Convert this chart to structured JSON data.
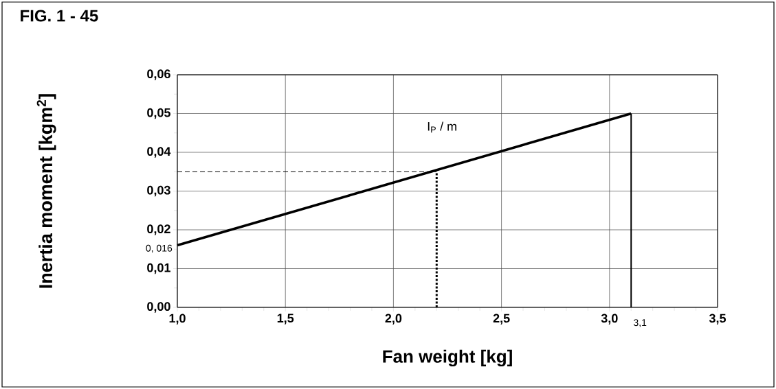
{
  "chart_data": {
    "type": "line",
    "title": "FIG. 1 - 45",
    "xlabel": "Fan weight [kg]",
    "ylabel": "Inertia moment [kgm$^{2}$]",
    "series": [
      {
        "color": "#000000",
        "line_style": "solid",
        "x": [
          1.0,
          3.1
        ],
        "values": [
          0.016,
          0.05
        ]
      },
      {
        "color": "#000000",
        "line_style": "solid",
        "x": [
          3.1,
          3.1
        ],
        "values": [
          0.0,
          0.05
        ]
      },
      {
        "color": "#000000",
        "line_style": "dashed",
        "x": [
          1.0,
          2.2
        ],
        "values": [
          0.035,
          0.035
        ]
      },
      {
        "color": "#000000",
        "line_style": "dotted",
        "x": [
          2.2,
          2.2
        ],
        "values": [
          0.0,
          0.035
        ]
      }
    ],
    "annotations": [
      "I$_{P}$ / m",
      {
        "text": "0, 016",
        "x": 1.0,
        "y": 0.016
      },
      {
        "text": "3,1",
        "x": 3.1,
        "y": 0.0
      }
    ],
    "xlim": [
      1.0,
      3.5
    ],
    "ylim": [
      0.0,
      0.06
    ],
    "xticks": [
      {
        "value": 1.0,
        "label": "1,0"
      },
      {
        "value": 1.5,
        "label": "1,5"
      },
      {
        "value": 2.0,
        "label": "2,0"
      },
      {
        "value": 2.5,
        "label": "2,5"
      },
      {
        "value": 3.0,
        "label": "3,0"
      },
      {
        "value": 3.5,
        "label": "3,5"
      }
    ],
    "yticks": [
      {
        "value": 0.0,
        "label": "0,00"
      },
      {
        "value": 0.01,
        "label": "0,01"
      },
      {
        "value": 0.02,
        "label": "0,02"
      },
      {
        "value": 0.03,
        "label": "0,03"
      },
      {
        "value": 0.04,
        "label": "0,04"
      },
      {
        "value": 0.05,
        "label": "0,05"
      },
      {
        "value": 0.06,
        "label": "0,06"
      }
    ],
    "grid": true
  }
}
